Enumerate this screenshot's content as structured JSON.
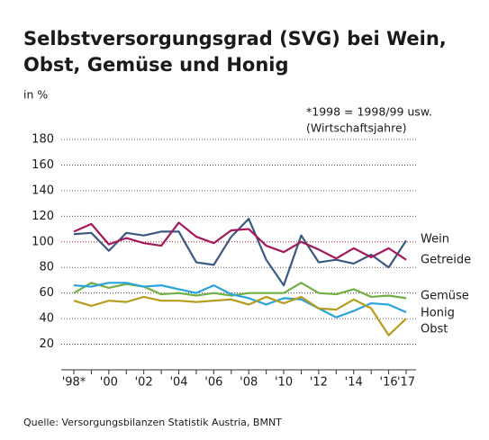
{
  "chart_data": {
    "type": "line",
    "title": [
      "Selbstversorgungsgrad (SVG) bei Wein,",
      "Obst, Gemüse und Honig"
    ],
    "unit_label": "in %",
    "note": [
      "*1998 = 1998/99 usw.",
      "(Wirtschaftsjahre)"
    ],
    "source": "Quelle: Versorgungsbilanzen Statistik Austria, BMNT",
    "categories": [
      "'98*",
      null,
      "'00",
      null,
      "'02",
      null,
      "'04",
      null,
      "'06",
      null,
      "'08",
      null,
      "'10",
      null,
      "'12",
      null,
      "'14",
      null,
      "'16",
      "'17"
    ],
    "ylim": [
      0,
      180
    ],
    "yticks": [
      20,
      40,
      60,
      80,
      100,
      120,
      140,
      160,
      180
    ],
    "grid": true,
    "reference_line": {
      "value": 100,
      "color": "#d9343f"
    },
    "series": [
      {
        "name": "Wein",
        "color": "#3a5a82",
        "values": [
          106,
          107,
          93,
          107,
          105,
          108,
          108,
          84,
          82,
          104,
          118,
          86,
          66,
          105,
          84,
          86,
          83,
          90,
          80,
          101
        ]
      },
      {
        "name": "Getreide",
        "color": "#a3195b",
        "values": [
          108,
          114,
          98,
          103,
          99,
          97,
          115,
          104,
          99,
          109,
          110,
          97,
          92,
          100,
          94,
          87,
          95,
          88,
          95,
          86
        ]
      },
      {
        "name": "Gemüse",
        "color": "#72b043",
        "values": [
          60,
          68,
          64,
          67,
          65,
          59,
          60,
          58,
          60,
          58,
          60,
          60,
          60,
          68,
          60,
          59,
          63,
          57,
          58,
          56
        ]
      },
      {
        "name": "Honig",
        "color": "#2aa3d8",
        "values": [
          66,
          65,
          68,
          68,
          65,
          66,
          63,
          60,
          66,
          59,
          56,
          51,
          56,
          55,
          48,
          41,
          46,
          52,
          51,
          45
        ]
      },
      {
        "name": "Obst",
        "color": "#b59d1f",
        "values": [
          54,
          50,
          54,
          53,
          57,
          54,
          54,
          53,
          54,
          55,
          51,
          57,
          52,
          57,
          48,
          47,
          55,
          48,
          27,
          40
        ]
      }
    ]
  }
}
